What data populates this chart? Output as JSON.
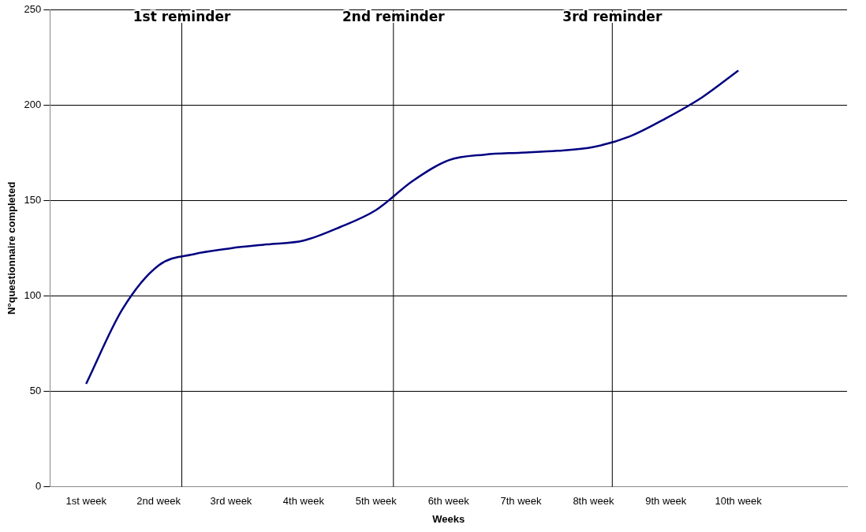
{
  "chart_data": {
    "type": "line",
    "xlabel": "Weeks",
    "ylabel": "N°questionnaire completed",
    "x": [
      1,
      1.5,
      2,
      2.5,
      3,
      3.5,
      4,
      4.5,
      5,
      5.5,
      6,
      6.5,
      7,
      7.5,
      8,
      8.5,
      9,
      9.5,
      10
    ],
    "series": [
      {
        "color": "#000080",
        "values": [
          54,
          93,
          116,
          122,
          125,
          127,
          129,
          136,
          145,
          160,
          171,
          174,
          175,
          176,
          178,
          183.5,
          193,
          204,
          218
        ]
      }
    ],
    "xlim": [
      0.5,
      11.5
    ],
    "xticks": [
      {
        "value": 1,
        "label": "1st week"
      },
      {
        "value": 2,
        "label": "2nd week"
      },
      {
        "value": 3,
        "label": "3rd week"
      },
      {
        "value": 4,
        "label": "4th week"
      },
      {
        "value": 5,
        "label": "5th week"
      },
      {
        "value": 6,
        "label": "6th week"
      },
      {
        "value": 7,
        "label": "7th week"
      },
      {
        "value": 8,
        "label": "8th week"
      },
      {
        "value": 9,
        "label": "9th week"
      },
      {
        "value": 10,
        "label": "10th week"
      }
    ],
    "ylim": [
      0,
      250
    ],
    "yticks": [
      0,
      50,
      100,
      150,
      200,
      250
    ],
    "ref_lines": [
      {
        "axis": "x",
        "value": 2.32,
        "label": "1st reminder",
        "color": "#000000"
      },
      {
        "axis": "x",
        "value": 5.24,
        "label": "2nd reminder",
        "color": "#000000"
      },
      {
        "axis": "x",
        "value": 8.26,
        "label": "3rd reminder",
        "color": "#000000"
      }
    ],
    "grid": "y",
    "legend": false,
    "marker": "none",
    "line_style": "solid"
  }
}
